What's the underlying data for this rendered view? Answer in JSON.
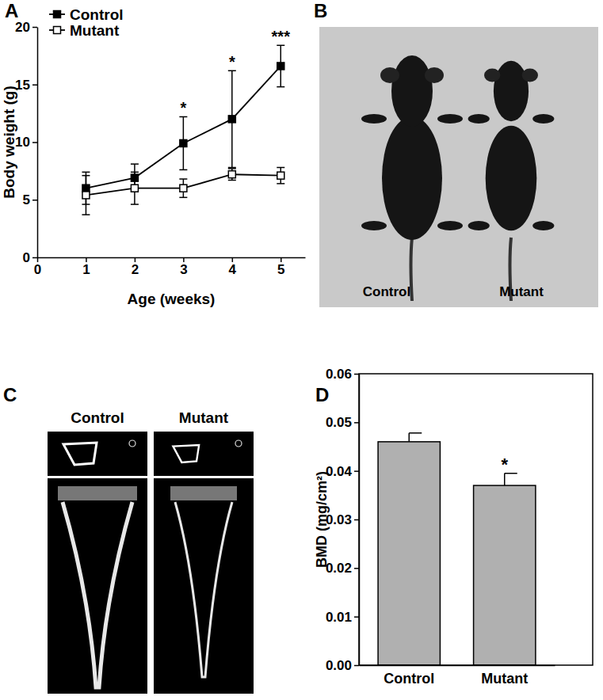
{
  "panel_labels": [
    "A",
    "B",
    "C",
    "D"
  ],
  "chart_data": [
    {
      "type": "line",
      "x_label": "Age (weeks)",
      "y_label": "Body weight (g)",
      "x": [
        1,
        2,
        3,
        4,
        5
      ],
      "xlim": [
        0,
        5.5
      ],
      "xticks": [
        0,
        1,
        2,
        3,
        4,
        5
      ],
      "ylim": [
        0,
        20
      ],
      "yticks": [
        0,
        5,
        10,
        15,
        20
      ],
      "grid": false,
      "legend": "top-left",
      "series": [
        {
          "name": "Control",
          "color": "#000000",
          "marker": "square",
          "values": [
            6.0,
            6.9,
            9.9,
            12.0,
            16.6
          ],
          "errors": [
            1.4,
            1.2,
            2.3,
            4.2,
            1.8
          ]
        },
        {
          "name": "Mutant",
          "color": "#000000",
          "marker": "square-open",
          "values": [
            5.4,
            6.0,
            6.0,
            7.2,
            7.1
          ],
          "errors": [
            1.7,
            1.4,
            0.8,
            0.5,
            0.7
          ]
        }
      ],
      "annotations": [
        {
          "x": 3,
          "text": "*"
        },
        {
          "x": 4,
          "text": "*"
        },
        {
          "x": 5,
          "text": "***"
        }
      ]
    },
    {
      "type": "bar",
      "y_label": "BMD (mg/cm²)",
      "categories": [
        "Control",
        "Mutant"
      ],
      "values": [
        0.046,
        0.037
      ],
      "errors": [
        0.0018,
        0.0025
      ],
      "color": "#b0b0b0",
      "ylim": [
        0,
        0.06
      ],
      "yticks": [
        {
          "value": 0,
          "label": "0.00"
        },
        0.01,
        0.02,
        0.03,
        0.04,
        0.05,
        0.06
      ],
      "grid": false,
      "annotations": [
        {
          "category": "Mutant",
          "text": "*"
        }
      ]
    }
  ],
  "photo": {
    "labels": [
      "Control",
      "Mutant"
    ]
  },
  "micro_ct": {
    "labels": [
      "Control",
      "Mutant"
    ]
  }
}
